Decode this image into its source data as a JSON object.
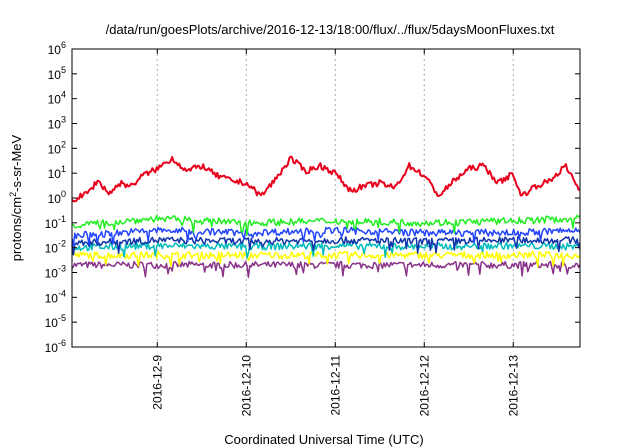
{
  "chart_data": {
    "type": "line",
    "title": "/data/run/goesPlots/archive/2016-12-13/18:00/flux/../flux/5daysMoonFluxes.txt",
    "xlabel": "Coordinated Universal Time (UTC)",
    "ylabel": "protons/cm²-s-sr-MeV",
    "y_scale": "log",
    "ylim": [
      1e-06,
      1000000.0
    ],
    "x_range": [
      "2016-12-08 01:00",
      "2016-12-13 18:00"
    ],
    "x_ticks": [
      "2016-12-9",
      "2016-12-10",
      "2016-12-11",
      "2016-12-12",
      "2016-12-13"
    ],
    "y_ticks": [
      {
        "value": 1e-06,
        "base": "10",
        "exp": "-6"
      },
      {
        "value": 1e-05,
        "base": "10",
        "exp": "-5"
      },
      {
        "value": 0.0001,
        "base": "10",
        "exp": "-4"
      },
      {
        "value": 0.001,
        "base": "10",
        "exp": "-3"
      },
      {
        "value": 0.01,
        "base": "10",
        "exp": "-2"
      },
      {
        "value": 0.1,
        "base": "10",
        "exp": "-1"
      },
      {
        "value": 1,
        "base": "10",
        "exp": "0"
      },
      {
        "value": 10.0,
        "base": "10",
        "exp": "1"
      },
      {
        "value": 100.0,
        "base": "10",
        "exp": "2"
      },
      {
        "value": 1000.0,
        "base": "10",
        "exp": "3"
      },
      {
        "value": 10000.0,
        "base": "10",
        "exp": "4"
      },
      {
        "value": 100000.0,
        "base": "10",
        "exp": "5"
      },
      {
        "value": 1000000.0,
        "base": "10",
        "exp": "6"
      }
    ],
    "grid": "vertical dashed at x ticks",
    "series": [
      {
        "color": "#e8001c",
        "width": 2.0,
        "points": [
          [
            "2016-12-08 01:00",
            0.8
          ],
          [
            "2016-12-08 05:00",
            1.5
          ],
          [
            "2016-12-08 08:00",
            5
          ],
          [
            "2016-12-08 11:00",
            1.5
          ],
          [
            "2016-12-08 14:00",
            4
          ],
          [
            "2016-12-08 17:00",
            3
          ],
          [
            "2016-12-08 20:00",
            8
          ],
          [
            "2016-12-09 00:00",
            15
          ],
          [
            "2016-12-09 04:00",
            40
          ],
          [
            "2016-12-09 08:00",
            12
          ],
          [
            "2016-12-09 12:00",
            20
          ],
          [
            "2016-12-09 16:00",
            8
          ],
          [
            "2016-12-09 20:00",
            5
          ],
          [
            "2016-12-10 00:00",
            4
          ],
          [
            "2016-12-10 04:00",
            1.2
          ],
          [
            "2016-12-10 08:00",
            6
          ],
          [
            "2016-12-10 12:00",
            40
          ],
          [
            "2016-12-10 16:00",
            12
          ],
          [
            "2016-12-10 20:00",
            20
          ],
          [
            "2016-12-11 00:00",
            10
          ],
          [
            "2016-12-11 04:00",
            2
          ],
          [
            "2016-12-11 08:00",
            3
          ],
          [
            "2016-12-11 12:00",
            4
          ],
          [
            "2016-12-11 16:00",
            2.5
          ],
          [
            "2016-12-11 20:00",
            20
          ],
          [
            "2016-12-12 00:00",
            8
          ],
          [
            "2016-12-12 04:00",
            1.2
          ],
          [
            "2016-12-12 08:00",
            5
          ],
          [
            "2016-12-12 12:00",
            15
          ],
          [
            "2016-12-12 16:00",
            20
          ],
          [
            "2016-12-12 20:00",
            4
          ],
          [
            "2016-12-13 00:00",
            10
          ],
          [
            "2016-12-13 02:00",
            1.2
          ],
          [
            "2016-12-13 06:00",
            3
          ],
          [
            "2016-12-13 10:00",
            5
          ],
          [
            "2016-12-13 14:00",
            20
          ],
          [
            "2016-12-13 18:00",
            2
          ]
        ]
      },
      {
        "color": "#22ee22",
        "width": 1.5,
        "points": [
          [
            "2016-12-08 01:00",
            0.08
          ],
          [
            "2016-12-09 00:00",
            0.15
          ],
          [
            "2016-12-10 00:00",
            0.1
          ],
          [
            "2016-12-11 00:00",
            0.12
          ],
          [
            "2016-12-12 00:00",
            0.1
          ],
          [
            "2016-12-13 00:00",
            0.12
          ],
          [
            "2016-12-13 18:00",
            0.15
          ]
        ]
      },
      {
        "color": "#2244ff",
        "width": 1.5,
        "points": [
          [
            "2016-12-08 01:00",
            0.03
          ],
          [
            "2016-12-09 00:00",
            0.05
          ],
          [
            "2016-12-10 00:00",
            0.04
          ],
          [
            "2016-12-11 00:00",
            0.05
          ],
          [
            "2016-12-12 00:00",
            0.04
          ],
          [
            "2016-12-13 00:00",
            0.04
          ],
          [
            "2016-12-13 18:00",
            0.05
          ]
        ]
      },
      {
        "color": "#1133aa",
        "width": 1.5,
        "points": [
          [
            "2016-12-08 01:00",
            0.015
          ],
          [
            "2016-12-09 00:00",
            0.02
          ],
          [
            "2016-12-10 00:00",
            0.018
          ],
          [
            "2016-12-11 00:00",
            0.02
          ],
          [
            "2016-12-12 00:00",
            0.018
          ],
          [
            "2016-12-13 00:00",
            0.02
          ],
          [
            "2016-12-13 18:00",
            0.02
          ]
        ]
      },
      {
        "color": "#00bbbb",
        "width": 1.5,
        "points": [
          [
            "2016-12-08 01:00",
            0.01
          ],
          [
            "2016-12-09 00:00",
            0.012
          ],
          [
            "2016-12-10 00:00",
            0.011
          ],
          [
            "2016-12-11 00:00",
            0.012
          ],
          [
            "2016-12-12 00:00",
            0.011
          ],
          [
            "2016-12-13 00:00",
            0.012
          ],
          [
            "2016-12-13 18:00",
            0.011
          ]
        ]
      },
      {
        "color": "#ffff00",
        "width": 1.5,
        "points": [
          [
            "2016-12-08 01:00",
            0.005
          ],
          [
            "2016-12-09 00:00",
            0.005
          ],
          [
            "2016-12-10 00:00",
            0.005
          ],
          [
            "2016-12-11 00:00",
            0.005
          ],
          [
            "2016-12-12 00:00",
            0.005
          ],
          [
            "2016-12-13 00:00",
            0.005
          ],
          [
            "2016-12-13 18:00",
            0.005
          ]
        ]
      },
      {
        "color": "#883388",
        "width": 1.5,
        "points": [
          [
            "2016-12-08 01:00",
            0.002
          ],
          [
            "2016-12-09 00:00",
            0.002
          ],
          [
            "2016-12-10 00:00",
            0.002
          ],
          [
            "2016-12-11 00:00",
            0.002
          ],
          [
            "2016-12-12 00:00",
            0.002
          ],
          [
            "2016-12-13 00:00",
            0.002
          ],
          [
            "2016-12-13 18:00",
            0.002
          ]
        ]
      }
    ]
  }
}
